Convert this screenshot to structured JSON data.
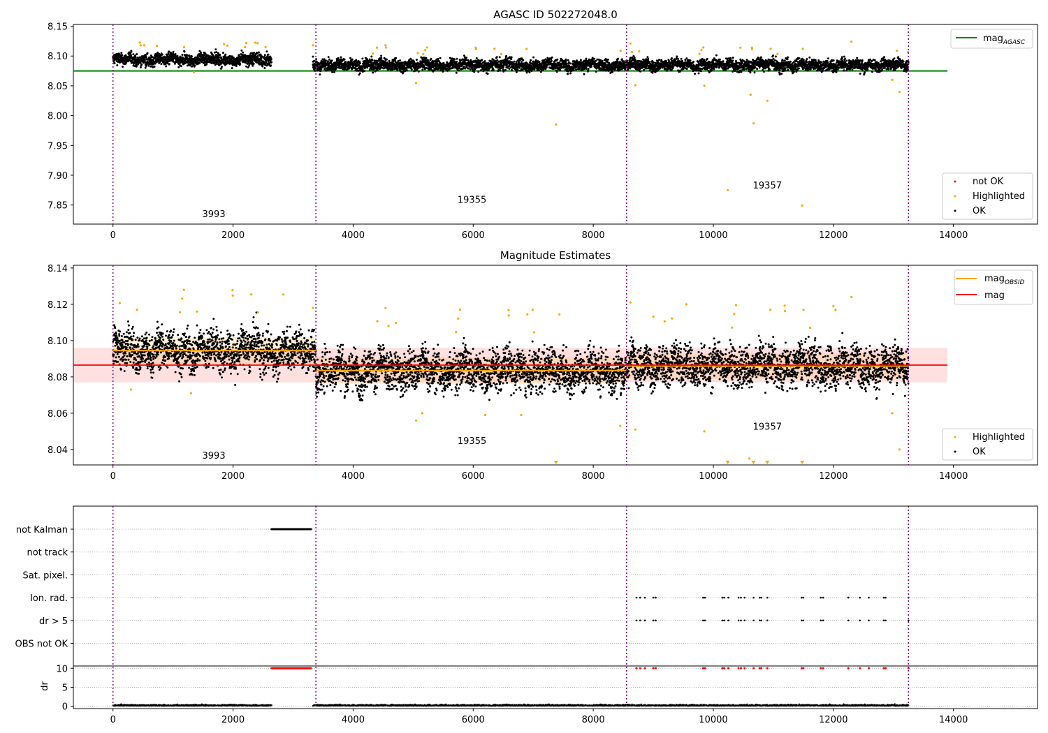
{
  "chart_data": [
    {
      "type": "scatter",
      "id": "top",
      "title": "AGASC ID 502272048.0",
      "xlabel": "",
      "ylabel": "",
      "xlim": [
        -660,
        15400
      ],
      "ylim": [
        7.818,
        8.153
      ],
      "xticks": [
        0,
        2000,
        4000,
        6000,
        8000,
        10000,
        12000,
        14000
      ],
      "xtick_labels": [
        "0",
        "2000",
        "4000",
        "6000",
        "8000",
        "10000",
        "12000",
        "14000"
      ],
      "yticks": [
        7.85,
        7.9,
        7.95,
        8.0,
        8.05,
        8.1,
        8.15
      ],
      "ytick_labels": [
        "7.85",
        "7.90",
        "7.95",
        "8.00",
        "8.05",
        "8.10",
        "8.15"
      ],
      "obsid_boundaries": [
        0,
        3380,
        8555,
        13250
      ],
      "obsid_labels": [
        {
          "text": "3993",
          "x": 1680,
          "y": 7.83
        },
        {
          "text": "19355",
          "x": 5980,
          "y": 7.854
        },
        {
          "text": "19357",
          "x": 10900,
          "y": 7.878
        }
      ],
      "reference_line": {
        "name": "mag_AGASC",
        "value": 8.075,
        "x": [
          -660,
          13900
        ],
        "color": "#008000"
      },
      "obsid_segments": [
        {
          "x_start": 0,
          "x_end": 2640,
          "mean": 8.094,
          "spread": 0.007
        },
        {
          "x_start": 3330,
          "x_end": 13250,
          "mean": 8.085,
          "spread": 0.007
        }
      ],
      "outliers": [
        {
          "x": 7380,
          "y": 7.985
        },
        {
          "x": 10240,
          "y": 7.875
        },
        {
          "x": 10670,
          "y": 7.987
        },
        {
          "x": 11480,
          "y": 7.849
        },
        {
          "x": 10900,
          "y": 8.025
        },
        {
          "x": 10620,
          "y": 8.035
        },
        {
          "x": 13100,
          "y": 8.04
        },
        {
          "x": 9850,
          "y": 8.05
        },
        {
          "x": 5050,
          "y": 8.055
        },
        {
          "x": 2200,
          "y": 8.115
        },
        {
          "x": 3330,
          "y": 8.118
        },
        {
          "x": 4540,
          "y": 8.118
        },
        {
          "x": 12300,
          "y": 8.124
        },
        {
          "x": 8620,
          "y": 8.121
        },
        {
          "x": 10450,
          "y": 8.114
        },
        {
          "x": 1350,
          "y": 8.073
        },
        {
          "x": 8700,
          "y": 8.051
        },
        {
          "x": 12980,
          "y": 8.06
        }
      ],
      "legend": {
        "placement": "top-right",
        "entries": [
          "mag_AGASC"
        ]
      },
      "legend_main": "mag",
      "legend_sub": "AGASC",
      "legend2": {
        "placement": "bottom-right",
        "entries": [
          "not OK",
          "Highlighted",
          "OK"
        ]
      },
      "colors": {
        "ok": "#000000",
        "highlighted": "#ffa500",
        "not_ok": "#ff0000",
        "boundary": "#800080"
      }
    },
    {
      "type": "scatter",
      "id": "middle",
      "title": "Magnitude Estimates",
      "xlabel": "",
      "ylabel": "",
      "xlim": [
        -660,
        15400
      ],
      "ylim": [
        8.0315,
        8.1415
      ],
      "xticks": [
        0,
        2000,
        4000,
        6000,
        8000,
        10000,
        12000,
        14000
      ],
      "xtick_labels": [
        "0",
        "2000",
        "4000",
        "6000",
        "8000",
        "10000",
        "12000",
        "14000"
      ],
      "yticks": [
        8.04,
        8.06,
        8.08,
        8.1,
        8.12,
        8.14
      ],
      "ytick_labels": [
        "8.04",
        "8.06",
        "8.08",
        "8.10",
        "8.12",
        "8.14"
      ],
      "obsid_boundaries": [
        0,
        3380,
        8555,
        13250
      ],
      "obsid_labels": [
        {
          "text": "3993",
          "x": 1680,
          "y": 8.035
        },
        {
          "text": "19355",
          "x": 5980,
          "y": 8.043
        },
        {
          "text": "19357",
          "x": 10900,
          "y": 8.051
        }
      ],
      "mag_line": {
        "name": "mag",
        "value": 8.0865,
        "band": [
          8.077,
          8.096
        ],
        "x": [
          -660,
          13900
        ],
        "color": "#ff0000"
      },
      "obsid_segments": [
        {
          "x_start": 0,
          "x_end": 3380,
          "mean": 8.0945,
          "band": [
            8.087,
            8.102
          ],
          "spread": 0.008
        },
        {
          "x_start": 3380,
          "x_end": 8555,
          "mean": 8.0835,
          "band": [
            8.076,
            8.091
          ],
          "spread": 0.008
        },
        {
          "x_start": 8555,
          "x_end": 13250,
          "mean": 8.086,
          "band": [
            8.079,
            8.093
          ],
          "spread": 0.008
        }
      ],
      "clipped_markers": [
        {
          "x": 7380
        },
        {
          "x": 10240
        },
        {
          "x": 10670
        },
        {
          "x": 10900
        },
        {
          "x": 11480
        }
      ],
      "outliers": [
        {
          "x": 5050,
          "y": 8.056
        },
        {
          "x": 5150,
          "y": 8.06
        },
        {
          "x": 8450,
          "y": 8.053
        },
        {
          "x": 8700,
          "y": 8.051
        },
        {
          "x": 9850,
          "y": 8.05
        },
        {
          "x": 10600,
          "y": 8.035
        },
        {
          "x": 13100,
          "y": 8.04
        },
        {
          "x": 9550,
          "y": 8.12
        },
        {
          "x": 12300,
          "y": 8.124
        },
        {
          "x": 8620,
          "y": 8.121
        },
        {
          "x": 3330,
          "y": 8.118
        },
        {
          "x": 4540,
          "y": 8.118
        },
        {
          "x": 400,
          "y": 8.117
        },
        {
          "x": 1400,
          "y": 8.116
        },
        {
          "x": 6990,
          "y": 8.117
        },
        {
          "x": 10950,
          "y": 8.117
        },
        {
          "x": 12000,
          "y": 8.119
        },
        {
          "x": 300,
          "y": 8.073
        },
        {
          "x": 1300,
          "y": 8.071
        },
        {
          "x": 12980,
          "y": 8.06
        },
        {
          "x": 6200,
          "y": 8.059
        },
        {
          "x": 6800,
          "y": 8.059
        }
      ],
      "legend": {
        "placement": "top-right",
        "entries": [
          "mag_OBSID",
          "mag"
        ]
      },
      "legend_main": "mag",
      "legend_sub": "OBSID",
      "legend2": {
        "placement": "bottom-right",
        "entries": [
          "Highlighted",
          "OK"
        ]
      },
      "colors": {
        "ok": "#000000",
        "highlighted": "#ffa500",
        "mean": "#ffa500",
        "mag": "#ff0000",
        "boundary": "#800080"
      }
    },
    {
      "type": "scatter",
      "id": "flags",
      "xlim": [
        -660,
        15400
      ],
      "xticks": [
        0,
        2000,
        4000,
        6000,
        8000,
        10000,
        12000,
        14000
      ],
      "xtick_labels": [
        "0",
        "2000",
        "4000",
        "6000",
        "8000",
        "10000",
        "12000",
        "14000"
      ],
      "obsid_boundaries": [
        0,
        3380,
        8555,
        13250
      ],
      "flag_rows": [
        "not Kalman",
        "not track",
        "Sat. pixel.",
        "Ion. rad.",
        "dr > 5",
        "OBS not OK"
      ],
      "flag_ranges": [
        {
          "row": "not Kalman",
          "x_start": 2640,
          "x_end": 3300
        }
      ],
      "flag_points_x": [
        8720,
        8780,
        8860,
        9000,
        9040,
        9830,
        9860,
        10150,
        10180,
        10250,
        10420,
        10460,
        10520,
        10670,
        10770,
        10800,
        10900,
        11470,
        11500,
        11790,
        11830,
        12250,
        12440,
        12590,
        12840,
        12870,
        13250
      ],
      "flag_point_rows": [
        "Ion. rad.",
        "dr > 5"
      ],
      "dr_axis": {
        "ylabel": "dr",
        "yticks": [
          0,
          5,
          10
        ],
        "ytick_labels": [
          "0",
          "5",
          "10"
        ],
        "ylim": [
          -0.6,
          10.6
        ],
        "baseline_level": 0.1,
        "clip_value": 10,
        "dr_high_x_ranges": [
          [
            2640,
            3300
          ]
        ]
      },
      "colors": {
        "points": "#000000",
        "clipped": "#ff0000",
        "boundary": "#800080",
        "grid": "#b0b0b0"
      }
    }
  ]
}
